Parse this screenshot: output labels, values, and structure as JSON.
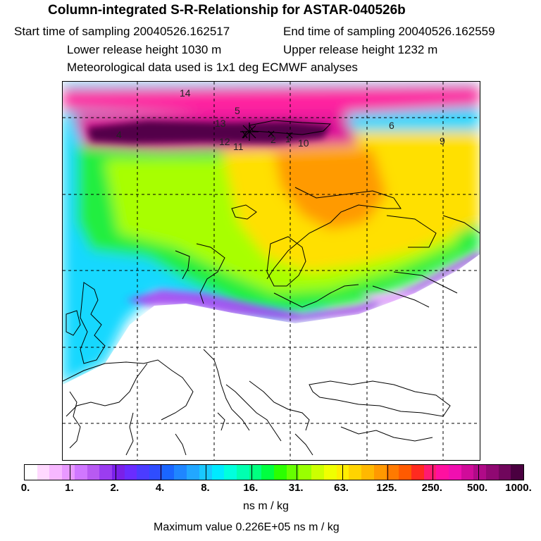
{
  "title": "Column-integrated S-R-Relationship for ASTAR-040526b",
  "header": {
    "start": "Start time of sampling 20040526.162517",
    "end": "End time of sampling 20040526.162559",
    "lower": "Lower release height 1030 m",
    "upper": "Upper release height 1232 m",
    "met": "Meteorological data used is 1x1 deg ECMWF analyses"
  },
  "map": {
    "point_labels": [
      "14",
      "5",
      "13",
      "4",
      "12",
      "11",
      "2",
      "1",
      "10",
      "6",
      "9"
    ]
  },
  "colorbar": {
    "ticks": [
      "0.",
      "1.",
      "2.",
      "4.",
      "8.",
      "16.",
      "31.",
      "63.",
      "125.",
      "250.",
      "500.",
      "1000."
    ],
    "colors": [
      "#ffffff",
      "#ffd9ff",
      "#f7b8ff",
      "#e899ff",
      "#d077ff",
      "#b85af2",
      "#9b3df0",
      "#7a20e8",
      "#6a2cff",
      "#4b3cff",
      "#2f4dff",
      "#1a66ff",
      "#1f86ff",
      "#22a7ff",
      "#19c8ff",
      "#00eaff",
      "#00ffdd",
      "#00ffb0",
      "#00ff80",
      "#00ff40",
      "#2bff00",
      "#66ff00",
      "#99ff00",
      "#ccff00",
      "#f0ff00",
      "#ffee00",
      "#ffd400",
      "#ffb800",
      "#ff9900",
      "#ff7a00",
      "#ff5a00",
      "#ff2a20",
      "#ff1a70",
      "#ff10a0",
      "#f00fb0",
      "#d00c9a",
      "#b00a88",
      "#900872",
      "#70065c",
      "#4a0040"
    ],
    "units": "ns m / kg"
  },
  "footer": {
    "max_value": "Maximum value  0.226E+05 ns m / kg"
  }
}
